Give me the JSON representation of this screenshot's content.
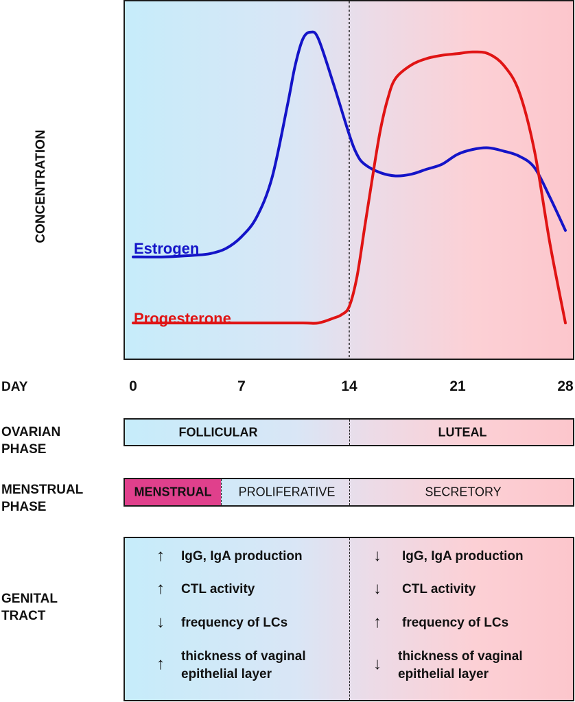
{
  "chart_data": {
    "type": "line",
    "ylabel": "CONCENTRATION",
    "xlabel": "DAY",
    "xlim": [
      0,
      28
    ],
    "ylim": [
      0,
      100
    ],
    "x_ticks": [
      "0",
      "7",
      "14",
      "21",
      "28"
    ],
    "y_ticks_shown": false,
    "grid": false,
    "legend": "inline labels at left of curves",
    "series": [
      {
        "name": "Estrogen",
        "color": "#1414c8",
        "points": [
          [
            0,
            26
          ],
          [
            2,
            26
          ],
          [
            4,
            26.5
          ],
          [
            5,
            27
          ],
          [
            6,
            28.5
          ],
          [
            7,
            32
          ],
          [
            8,
            38
          ],
          [
            9,
            50
          ],
          [
            10,
            72
          ],
          [
            10.5,
            84
          ],
          [
            11,
            92
          ],
          [
            11.5,
            94
          ],
          [
            12,
            92
          ],
          [
            13,
            78
          ],
          [
            14,
            63
          ],
          [
            14.5,
            57
          ],
          [
            15,
            54
          ],
          [
            16,
            51.5
          ],
          [
            17,
            50.5
          ],
          [
            18,
            51
          ],
          [
            19,
            52.5
          ],
          [
            20,
            54
          ],
          [
            21,
            57
          ],
          [
            22,
            58.5
          ],
          [
            23,
            59
          ],
          [
            24,
            58
          ],
          [
            25,
            56.5
          ],
          [
            26,
            53
          ],
          [
            27,
            44
          ],
          [
            28,
            34
          ]
        ]
      },
      {
        "name": "Progesterone",
        "color": "#e01414",
        "points": [
          [
            0,
            6
          ],
          [
            4,
            6
          ],
          [
            8,
            6
          ],
          [
            11,
            6
          ],
          [
            12,
            6
          ],
          [
            13,
            7.5
          ],
          [
            13.5,
            8.5
          ],
          [
            14,
            11
          ],
          [
            14.5,
            20
          ],
          [
            15,
            35
          ],
          [
            15.5,
            50
          ],
          [
            16,
            64
          ],
          [
            16.5,
            74
          ],
          [
            17,
            80
          ],
          [
            18,
            84
          ],
          [
            19,
            86
          ],
          [
            20,
            87
          ],
          [
            21,
            87.5
          ],
          [
            22,
            88
          ],
          [
            23,
            87.5
          ],
          [
            24,
            84
          ],
          [
            25,
            76
          ],
          [
            26,
            58
          ],
          [
            27,
            30
          ],
          [
            28,
            6
          ]
        ]
      }
    ],
    "annotations": [
      "day 14 dashed divider"
    ]
  },
  "day_label": "DAY",
  "ovarian": {
    "label_line1": "OVARIAN",
    "label_line2": "PHASE",
    "follicular": "FOLLICULAR",
    "luteal": "LUTEAL"
  },
  "menstrual": {
    "label_line1": "MENSTRUAL",
    "label_line2": "PHASE",
    "menstrual": "MENSTRUAL",
    "proliferative": "PROLIFERATIVE",
    "secretory": "SECRETORY"
  },
  "genital": {
    "label_line1": "GENITAL",
    "label_line2": "TRACT",
    "left": [
      {
        "arrow": "↑",
        "line1": "IgG, IgA production",
        "line2": ""
      },
      {
        "arrow": "↑",
        "line1": "CTL activity",
        "line2": ""
      },
      {
        "arrow": "↓",
        "line1": "frequency of LCs",
        "line2": ""
      },
      {
        "arrow": "↑",
        "line1": "thickness of vaginal",
        "line2": "epithelial layer"
      }
    ],
    "right": [
      {
        "arrow": "↓",
        "line1": "IgG, IgA production",
        "line2": ""
      },
      {
        "arrow": "↓",
        "line1": "CTL activity",
        "line2": ""
      },
      {
        "arrow": "↑",
        "line1": "frequency of LCs",
        "line2": ""
      },
      {
        "arrow": "↓",
        "line1": "thickness of vaginal",
        "line2": "epithelial layer"
      }
    ]
  },
  "colors": {
    "menstrual_fill": "#e0408c"
  }
}
